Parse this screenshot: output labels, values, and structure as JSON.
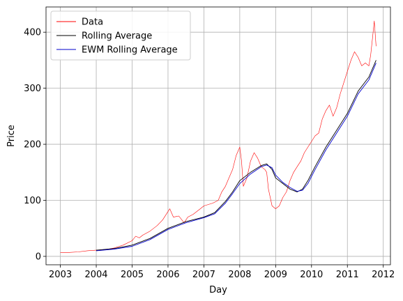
{
  "chart_data": {
    "type": "line",
    "xlabel": "Day",
    "ylabel": "Price",
    "xlim": [
      2002.6,
      2012.2
    ],
    "ylim": [
      -15,
      445
    ],
    "xticks": [
      {
        "value": 2003,
        "label": "2003"
      },
      {
        "value": 2004,
        "label": "2004"
      },
      {
        "value": 2005,
        "label": "2005"
      },
      {
        "value": 2006,
        "label": "2006"
      },
      {
        "value": 2007,
        "label": "2007"
      },
      {
        "value": 2008,
        "label": "2008"
      },
      {
        "value": 2009,
        "label": "2009"
      },
      {
        "value": 2010,
        "label": "2010"
      },
      {
        "value": 2011,
        "label": "2011"
      },
      {
        "value": 2012,
        "label": "2012"
      }
    ],
    "yticks": [
      {
        "value": 0,
        "label": "0"
      },
      {
        "value": 100,
        "label": "100"
      },
      {
        "value": 200,
        "label": "200"
      },
      {
        "value": 300,
        "label": "300"
      },
      {
        "value": 400,
        "label": "400"
      }
    ],
    "grid": true,
    "legend_position": "top-left",
    "series": [
      {
        "name": "Data",
        "color": "#ff0000",
        "x": [
          2003.0,
          2003.25,
          2003.5,
          2003.75,
          2004.0,
          2004.25,
          2004.5,
          2004.75,
          2005.0,
          2005.1,
          2005.2,
          2005.3,
          2005.5,
          2005.7,
          2005.85,
          2006.0,
          2006.05,
          2006.15,
          2006.3,
          2006.45,
          2006.55,
          2006.7,
          2006.9,
          2007.0,
          2007.1,
          2007.25,
          2007.4,
          2007.5,
          2007.6,
          2007.7,
          2007.8,
          2007.9,
          2008.0,
          2008.05,
          2008.1,
          2008.2,
          2008.3,
          2008.4,
          2008.5,
          2008.6,
          2008.7,
          2008.75,
          2008.8,
          2008.9,
          2009.0,
          2009.1,
          2009.2,
          2009.3,
          2009.4,
          2009.5,
          2009.6,
          2009.7,
          2009.8,
          2009.9,
          2010.0,
          2010.1,
          2010.2,
          2010.3,
          2010.4,
          2010.5,
          2010.6,
          2010.7,
          2010.8,
          2010.9,
          2011.0,
          2011.1,
          2011.2,
          2011.3,
          2011.4,
          2011.5,
          2011.6,
          2011.65,
          2011.7,
          2011.75,
          2011.8
        ],
        "values": [
          7,
          7,
          8,
          10,
          11,
          12,
          15,
          20,
          28,
          36,
          33,
          38,
          45,
          55,
          65,
          80,
          85,
          70,
          72,
          60,
          70,
          75,
          85,
          90,
          92,
          95,
          100,
          115,
          125,
          140,
          155,
          180,
          195,
          170,
          125,
          140,
          170,
          185,
          175,
          160,
          155,
          150,
          120,
          90,
          85,
          90,
          105,
          115,
          135,
          150,
          160,
          170,
          185,
          195,
          205,
          215,
          220,
          245,
          260,
          270,
          250,
          265,
          290,
          310,
          330,
          350,
          365,
          355,
          340,
          345,
          340,
          360,
          390,
          420,
          375
        ]
      },
      {
        "name": "Rolling Average",
        "color": "#000000",
        "x": [
          2004.0,
          2004.5,
          2005.0,
          2005.5,
          2006.0,
          2006.5,
          2007.0,
          2007.3,
          2007.6,
          2007.8,
          2008.0,
          2008.3,
          2008.6,
          2008.75,
          2008.9,
          2009.0,
          2009.2,
          2009.4,
          2009.6,
          2009.75,
          2009.9,
          2010.1,
          2010.4,
          2010.7,
          2011.0,
          2011.3,
          2011.6,
          2011.8
        ],
        "values": [
          11,
          14,
          20,
          32,
          50,
          62,
          70,
          78,
          98,
          115,
          135,
          150,
          162,
          165,
          155,
          140,
          130,
          120,
          115,
          120,
          135,
          160,
          195,
          225,
          255,
          295,
          320,
          350
        ]
      },
      {
        "name": "EWM Rolling Average",
        "color": "#0000cc",
        "x": [
          2004.0,
          2004.5,
          2005.0,
          2005.5,
          2006.0,
          2006.5,
          2007.0,
          2007.3,
          2007.6,
          2007.8,
          2008.0,
          2008.3,
          2008.6,
          2008.75,
          2008.9,
          2009.0,
          2009.2,
          2009.4,
          2009.6,
          2009.75,
          2009.9,
          2010.1,
          2010.4,
          2010.7,
          2011.0,
          2011.3,
          2011.6,
          2011.8
        ],
        "values": [
          10,
          13,
          18,
          30,
          48,
          60,
          69,
          76,
          95,
          112,
          130,
          147,
          160,
          163,
          158,
          145,
          132,
          123,
          116,
          118,
          130,
          155,
          190,
          220,
          250,
          290,
          315,
          345
        ]
      }
    ]
  }
}
